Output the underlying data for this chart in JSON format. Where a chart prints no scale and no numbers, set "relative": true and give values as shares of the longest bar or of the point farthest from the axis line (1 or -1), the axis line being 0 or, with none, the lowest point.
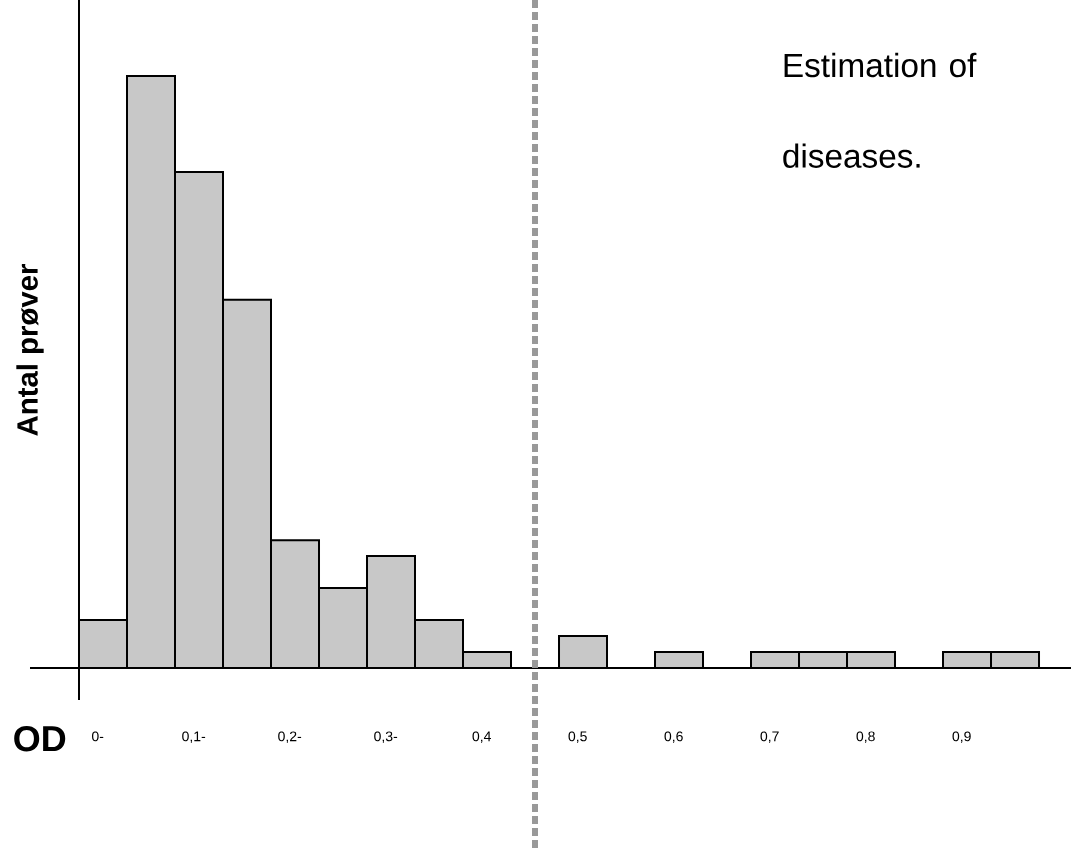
{
  "chart_data": {
    "type": "bar",
    "relative": true,
    "xlabel": "OD",
    "ylabel": "Antal prøver",
    "categories": [
      "0-",
      null,
      "0,1-",
      null,
      "0,2-",
      null,
      "0,3-",
      null,
      "0,4",
      null,
      "0,5",
      null,
      "0,6",
      null,
      "0,7",
      null,
      "0,8",
      null,
      "0,9",
      null
    ],
    "values": [
      0.081,
      1,
      0.838,
      0.622,
      0.216,
      0.135,
      0.189,
      0.081,
      0.027,
      0,
      0.054,
      0,
      0.027,
      0,
      0.027,
      0.027,
      0.027,
      0,
      0.027,
      0.027
    ],
    "color": "#c8c8c8",
    "annotations": [
      "Estimation of diseases."
    ]
  }
}
